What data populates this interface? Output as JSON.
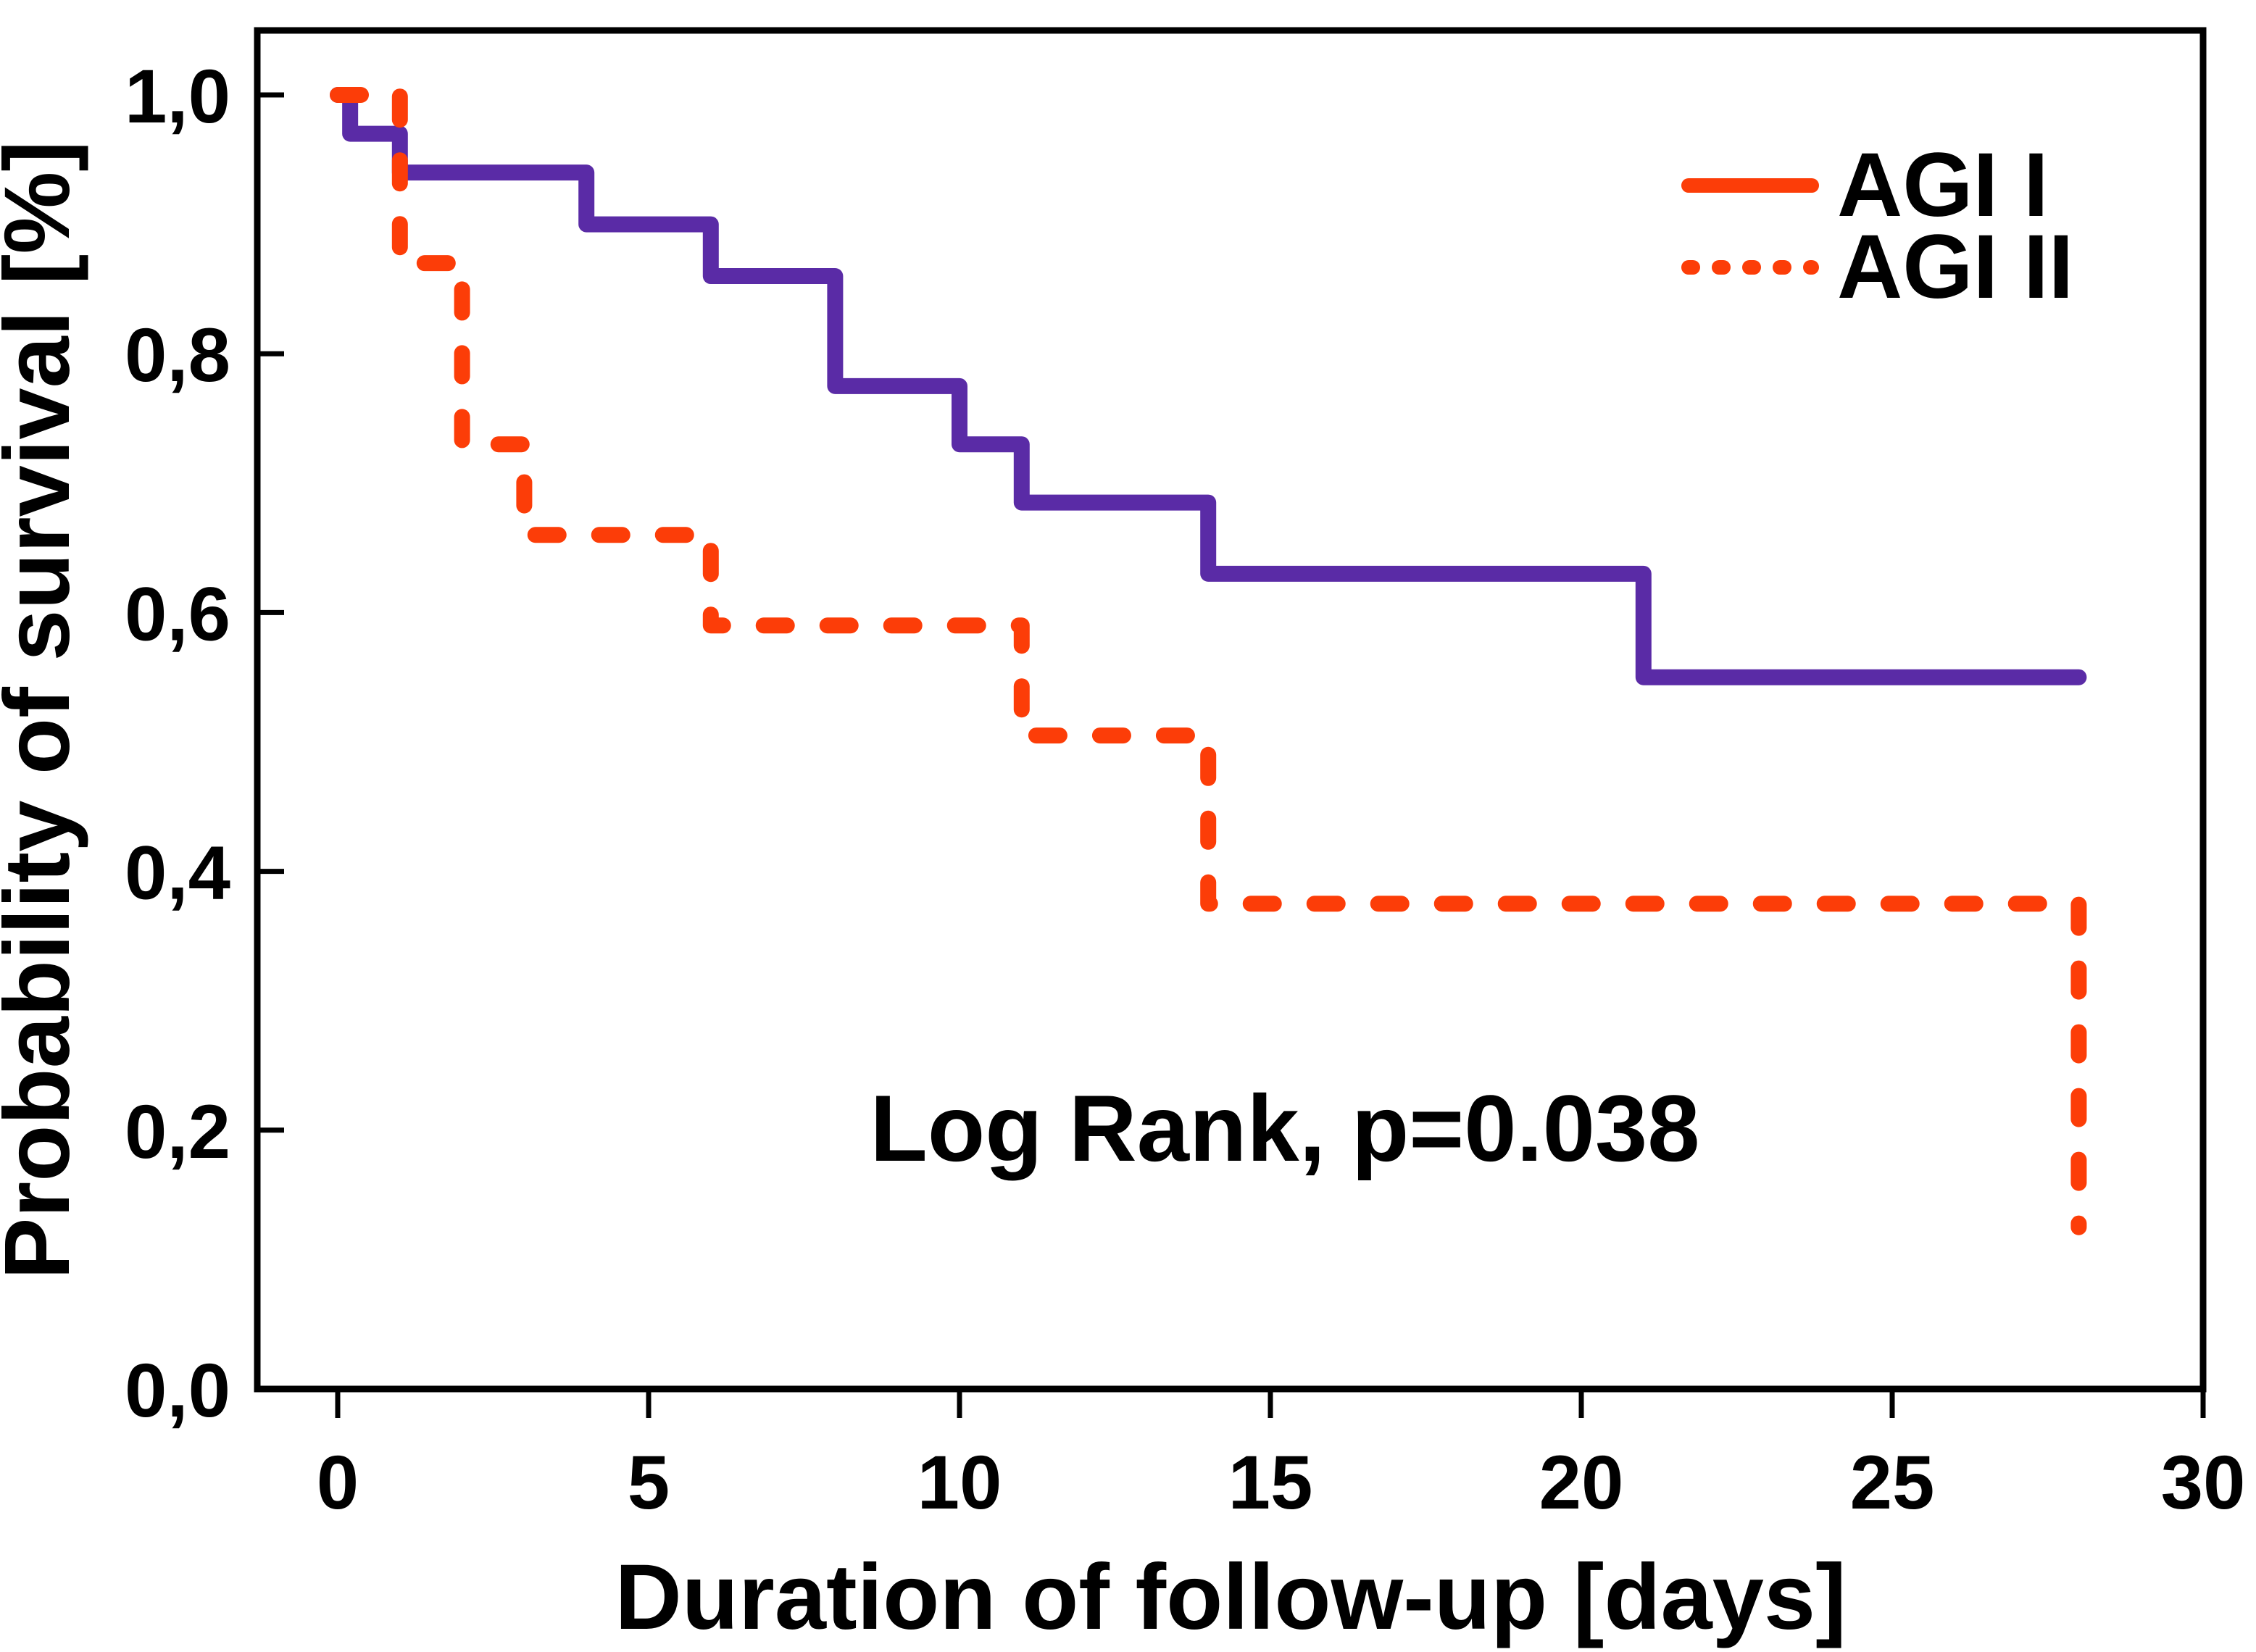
{
  "figure": {
    "background": "#ffffff",
    "axis_color": "#000000"
  },
  "chart_data": {
    "type": "line",
    "subtype": "kaplan-meier-step-survival",
    "title": "",
    "xlabel": "Duration of follow-up [days]",
    "ylabel": "Probability of survival [%]",
    "xlim": [
      0,
      30
    ],
    "ylim": [
      0.0,
      1.0
    ],
    "grid": "off",
    "legend_position": "top-right",
    "annotation": "Log Rank, p=0.038",
    "x_ticks": [
      {
        "value": 0,
        "label": "0"
      },
      {
        "value": 5,
        "label": "5"
      },
      {
        "value": 10,
        "label": "10"
      },
      {
        "value": 15,
        "label": "15"
      },
      {
        "value": 20,
        "label": "20"
      },
      {
        "value": 25,
        "label": "25"
      },
      {
        "value": 30,
        "label": "30"
      }
    ],
    "y_ticks": [
      {
        "value": 0.0,
        "label": "0,0"
      },
      {
        "value": 0.2,
        "label": "0,2"
      },
      {
        "value": 0.4,
        "label": "0,4"
      },
      {
        "value": 0.6,
        "label": "0,6"
      },
      {
        "value": 0.8,
        "label": "0,8"
      },
      {
        "value": 1.0,
        "label": "1,0"
      }
    ],
    "series": [
      {
        "name": "AGI I",
        "style": "solid",
        "color": "#5a2ba6",
        "legend_color": "#fc3d08",
        "points": [
          [
            0,
            1.0
          ],
          [
            0.2,
            0.97
          ],
          [
            1,
            0.94
          ],
          [
            4,
            0.9
          ],
          [
            6,
            0.86
          ],
          [
            8,
            0.775
          ],
          [
            10,
            0.73
          ],
          [
            11,
            0.685
          ],
          [
            14,
            0.63
          ],
          [
            21,
            0.55
          ],
          [
            28,
            0.55
          ]
        ]
      },
      {
        "name": "AGI II",
        "style": "dotted",
        "color": "#fc3d08",
        "legend_color": "#fc3d08",
        "points": [
          [
            0,
            1.0
          ],
          [
            1,
            0.87
          ],
          [
            2,
            0.73
          ],
          [
            3,
            0.66
          ],
          [
            6,
            0.59
          ],
          [
            11,
            0.505
          ],
          [
            14,
            0.375
          ],
          [
            28,
            0.375
          ],
          [
            28,
            0.125
          ]
        ]
      }
    ]
  }
}
